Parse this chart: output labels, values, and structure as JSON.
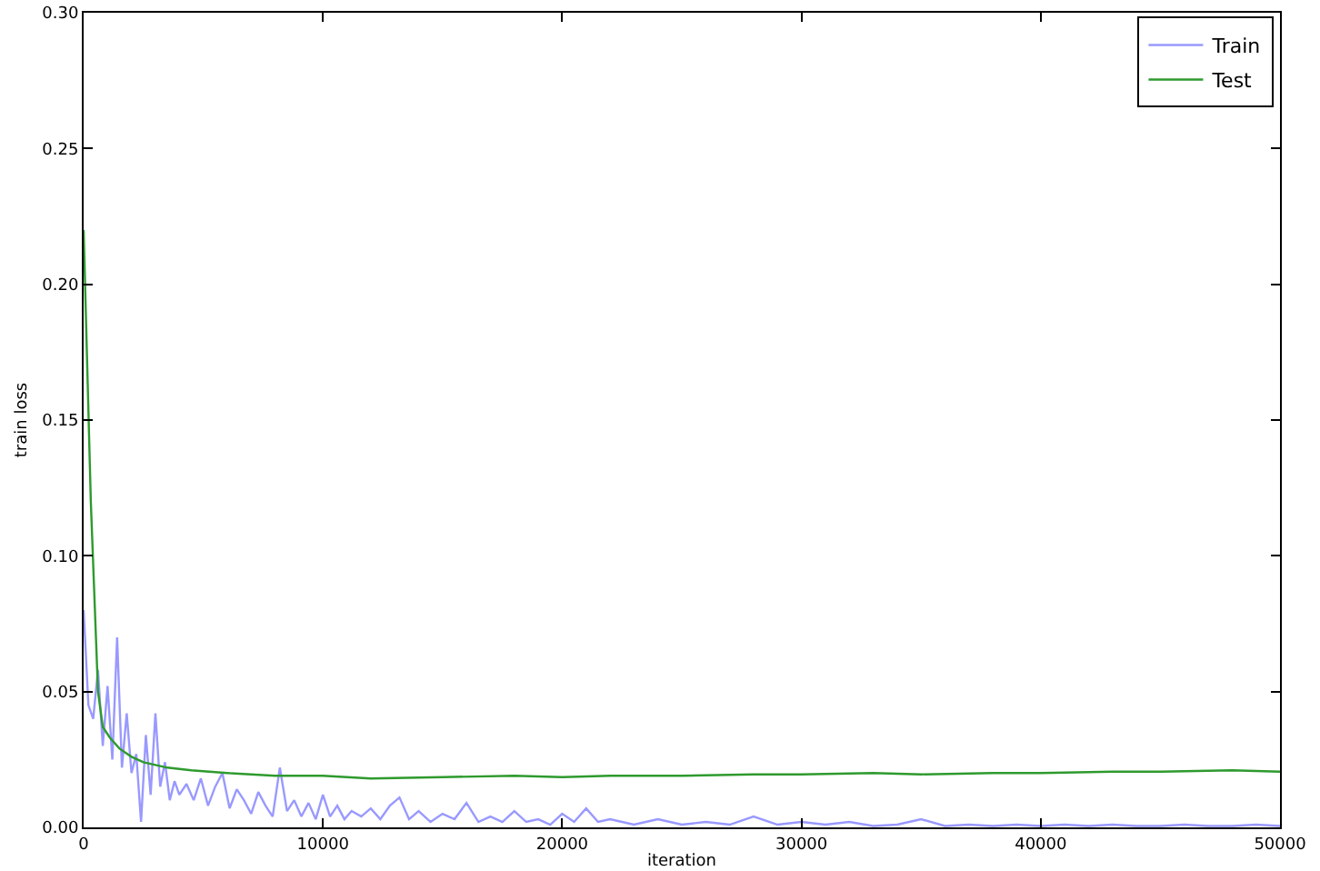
{
  "chart_data": {
    "type": "line",
    "xlabel": "iteration",
    "ylabel": "train loss",
    "xlim": [
      0,
      50000
    ],
    "ylim": [
      0,
      0.3
    ],
    "xticks": [
      0,
      10000,
      20000,
      30000,
      40000,
      50000
    ],
    "yticks": [
      {
        "value": 0,
        "label": "0.00"
      },
      {
        "value": 0.05,
        "label": "0.05"
      },
      {
        "value": 0.1,
        "label": "0.10"
      },
      {
        "value": 0.15,
        "label": "0.15"
      },
      {
        "value": 0.2,
        "label": "0.20"
      },
      {
        "value": 0.25,
        "label": "0.25"
      },
      {
        "value": 0.3,
        "label": "0.30"
      }
    ],
    "grid": false,
    "legend": "top right",
    "marker": "none",
    "line_style": "solid",
    "series": [
      {
        "name": "Train",
        "color": "#9999ff",
        "x": [
          0,
          200,
          400,
          600,
          800,
          1000,
          1200,
          1400,
          1600,
          1800,
          2000,
          2200,
          2400,
          2600,
          2800,
          3000,
          3200,
          3400,
          3600,
          3800,
          4000,
          4300,
          4600,
          4900,
          5200,
          5500,
          5800,
          6100,
          6400,
          6700,
          7000,
          7300,
          7600,
          7900,
          8200,
          8500,
          8800,
          9100,
          9400,
          9700,
          10000,
          10300,
          10600,
          10900,
          11200,
          11600,
          12000,
          12400,
          12800,
          13200,
          13600,
          14000,
          14500,
          15000,
          15500,
          16000,
          16500,
          17000,
          17500,
          18000,
          18500,
          19000,
          19500,
          20000,
          20500,
          21000,
          21500,
          22000,
          23000,
          24000,
          25000,
          26000,
          27000,
          28000,
          29000,
          30000,
          31000,
          32000,
          33000,
          34000,
          35000,
          36000,
          37000,
          38000,
          39000,
          40000,
          41000,
          42000,
          43000,
          44000,
          45000,
          46000,
          47000,
          48000,
          49000,
          50000
        ],
        "values": [
          0.08,
          0.045,
          0.04,
          0.058,
          0.03,
          0.052,
          0.025,
          0.07,
          0.022,
          0.042,
          0.02,
          0.027,
          0.002,
          0.034,
          0.012,
          0.042,
          0.015,
          0.024,
          0.01,
          0.017,
          0.012,
          0.016,
          0.01,
          0.018,
          0.008,
          0.015,
          0.02,
          0.007,
          0.014,
          0.01,
          0.005,
          0.013,
          0.008,
          0.004,
          0.022,
          0.006,
          0.01,
          0.004,
          0.009,
          0.003,
          0.012,
          0.004,
          0.008,
          0.003,
          0.006,
          0.004,
          0.007,
          0.003,
          0.008,
          0.011,
          0.003,
          0.006,
          0.002,
          0.005,
          0.003,
          0.009,
          0.002,
          0.004,
          0.002,
          0.006,
          0.002,
          0.003,
          0.001,
          0.005,
          0.002,
          0.007,
          0.002,
          0.003,
          0.001,
          0.003,
          0.001,
          0.002,
          0.001,
          0.004,
          0.001,
          0.002,
          0.001,
          0.002,
          0.0005,
          0.001,
          0.003,
          0.0005,
          0.001,
          0.0005,
          0.001,
          0.0005,
          0.001,
          0.0005,
          0.001,
          0.0005,
          0.0005,
          0.001,
          0.0005,
          0.0005,
          0.001,
          0.0005
        ]
      },
      {
        "name": "Test",
        "color": "#2e9a2e",
        "x": [
          0,
          300,
          600,
          800,
          1100,
          1500,
          2000,
          2500,
          3000,
          3500,
          4500,
          6000,
          8000,
          10000,
          12000,
          15000,
          18000,
          20000,
          22000,
          25000,
          28000,
          30000,
          33000,
          35000,
          38000,
          40000,
          43000,
          45000,
          48000,
          50000
        ],
        "values": [
          0.22,
          0.12,
          0.05,
          0.037,
          0.033,
          0.029,
          0.026,
          0.024,
          0.023,
          0.022,
          0.021,
          0.02,
          0.019,
          0.019,
          0.018,
          0.0185,
          0.019,
          0.0185,
          0.019,
          0.019,
          0.0195,
          0.0195,
          0.02,
          0.0195,
          0.02,
          0.02,
          0.0205,
          0.0205,
          0.021,
          0.0205
        ]
      }
    ]
  }
}
